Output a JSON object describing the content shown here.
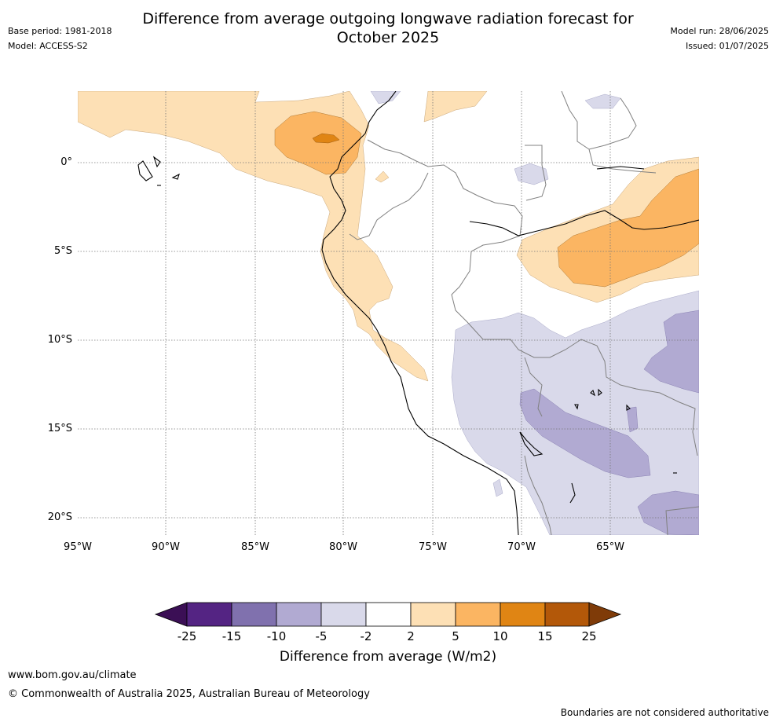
{
  "header": {
    "title_line1": "Difference from average outgoing longwave radiation forecast for",
    "title_line2": "October 2025",
    "base_period": "Base period: 1981-2018",
    "model": "Model: ACCESS-S2",
    "model_run": "Model run: 28/06/2025",
    "issued": "Issued: 01/07/2025"
  },
  "map": {
    "lon_labels": [
      "95°W",
      "90°W",
      "85°W",
      "80°W",
      "75°W",
      "70°W",
      "65°W"
    ],
    "lat_labels": [
      "0°",
      "5°S",
      "10°S",
      "15°S",
      "20°S"
    ],
    "extent": {
      "lon": [
        -95,
        -60
      ],
      "lat": [
        -21,
        4
      ]
    }
  },
  "colorbar": {
    "title": "Difference from average (W/m2)",
    "ticks": [
      "-25",
      "-15",
      "-10",
      "-5",
      "-2",
      "2",
      "5",
      "10",
      "15",
      "25"
    ],
    "colors": [
      "#3b0f55",
      "#542483",
      "#8071ae",
      "#b1aad2",
      "#d9d9ea",
      "#ffffff",
      "#fde0b5",
      "#fbb562",
      "#e08514",
      "#b35809",
      "#7f3b08"
    ]
  },
  "footer": {
    "url": "www.bom.gov.au/climate",
    "copyright": "© Commonwealth of Australia 2025, Australian Bureau of Meteorology",
    "disclaimer": "Boundaries are not considered authoritative"
  }
}
